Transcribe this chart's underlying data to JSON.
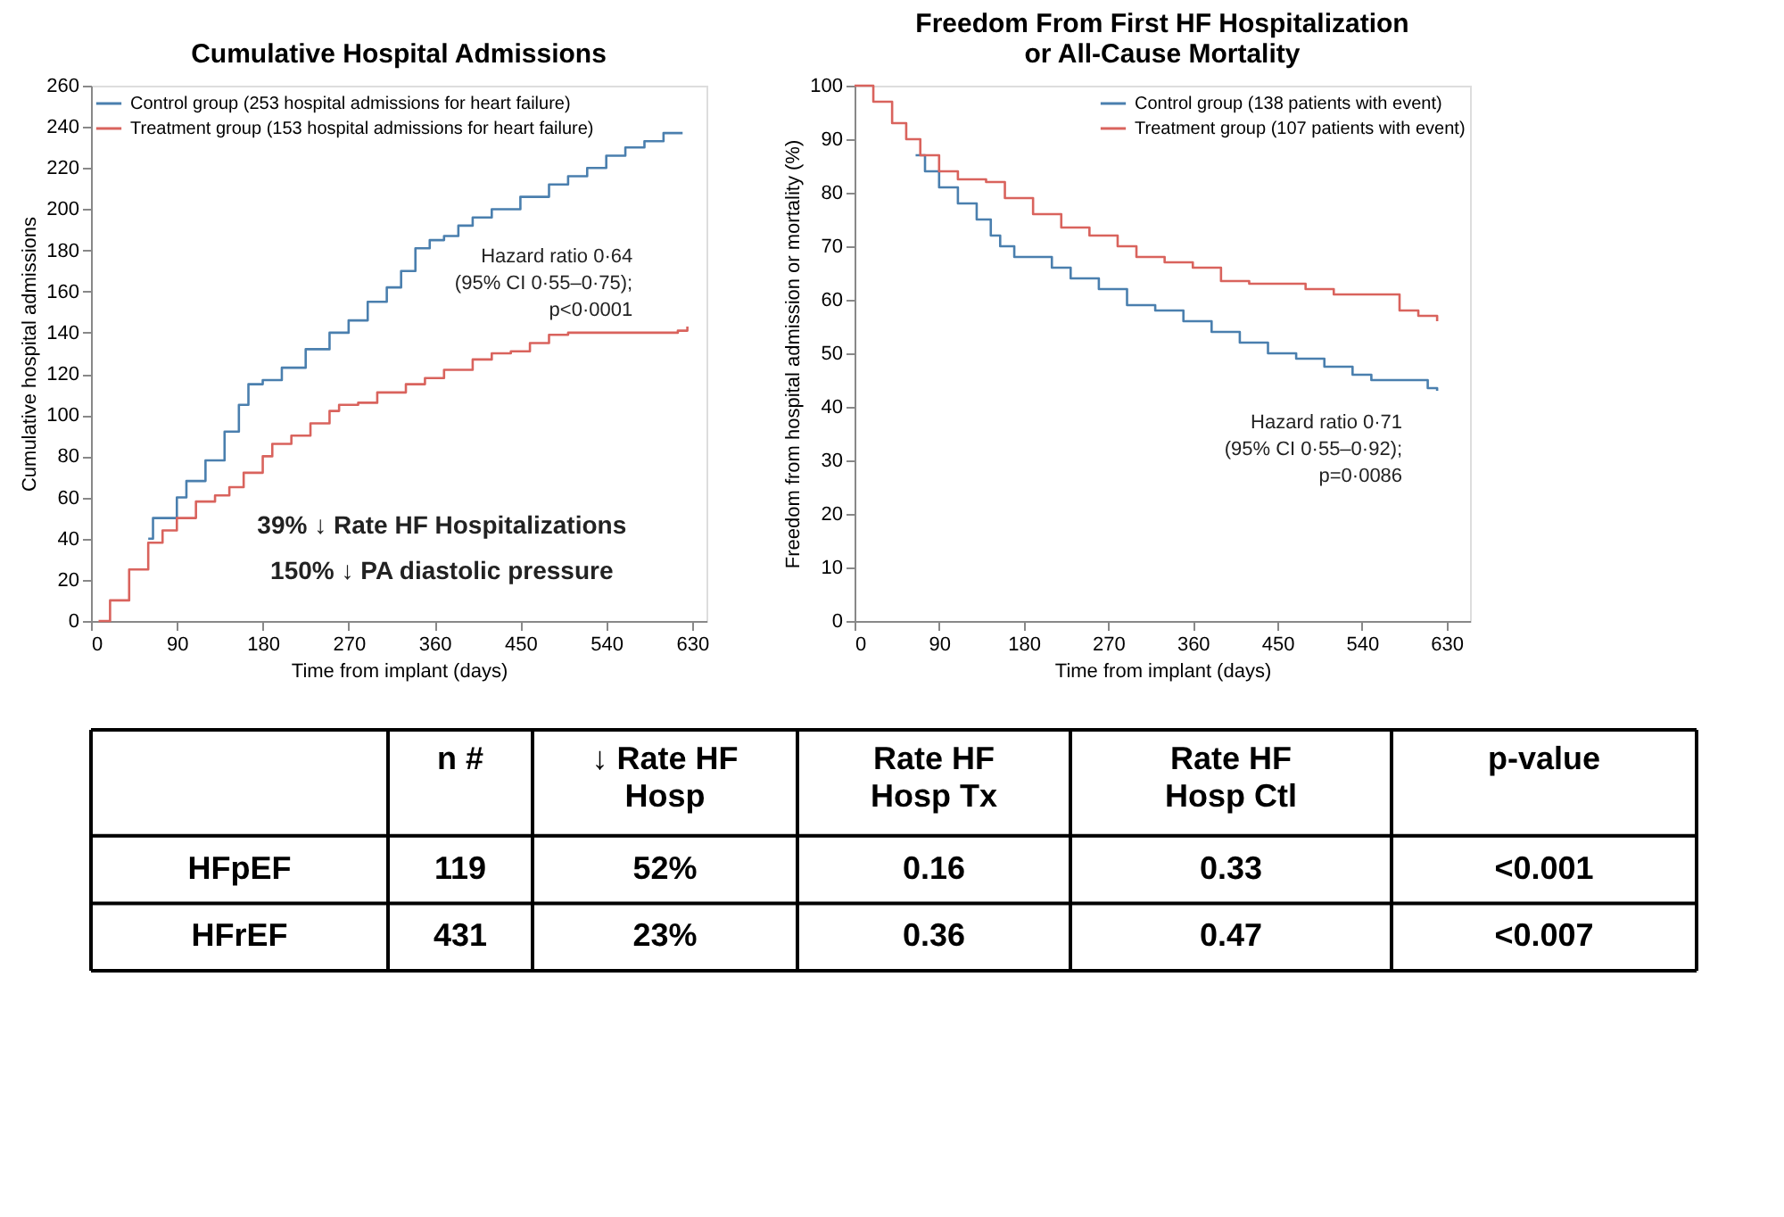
{
  "chart_data": [
    {
      "type": "step",
      "title": "Cumulative Hospital Admissions",
      "xlabel": "Time from implant (days)",
      "ylabel": "Cumulative hospital admissions",
      "xlim": [
        0,
        645
      ],
      "ylim": [
        0,
        260
      ],
      "xticks": [
        0,
        90,
        180,
        270,
        360,
        450,
        540,
        630
      ],
      "yticks": [
        0,
        20,
        40,
        60,
        80,
        100,
        120,
        140,
        160,
        180,
        200,
        220,
        240,
        260
      ],
      "legend": "top left",
      "series": [
        {
          "name": "Control group (253 hospital admissions for heart failure)",
          "color": "#4a7fae",
          "x": [
            60,
            65,
            75,
            90,
            100,
            120,
            140,
            155,
            165,
            180,
            200,
            225,
            250,
            270,
            290,
            310,
            325,
            340,
            355,
            370,
            385,
            400,
            420,
            450,
            480,
            500,
            520,
            540,
            560,
            580,
            600,
            620
          ],
          "values": [
            40,
            50,
            50,
            60,
            68,
            78,
            92,
            105,
            115,
            117,
            123,
            132,
            140,
            146,
            155,
            162,
            170,
            181,
            185,
            187,
            192,
            196,
            200,
            206,
            212,
            216,
            220,
            226,
            230,
            233,
            237,
            237
          ]
        },
        {
          "name": "Treatment group (153 hospital admissions for heart failure)",
          "color": "#d9635d",
          "x": [
            8,
            20,
            40,
            60,
            75,
            90,
            110,
            130,
            145,
            160,
            180,
            190,
            210,
            230,
            250,
            260,
            280,
            300,
            330,
            350,
            370,
            400,
            420,
            440,
            460,
            480,
            500,
            530,
            600,
            615,
            625
          ],
          "values": [
            0,
            10,
            25,
            38,
            44,
            50,
            58,
            61,
            65,
            72,
            80,
            86,
            90,
            96,
            102,
            105,
            106,
            111,
            115,
            118,
            122,
            127,
            130,
            131,
            135,
            139,
            140,
            140,
            140,
            141,
            143
          ]
        }
      ],
      "annotations": [
        "Hazard ratio 0·64\n(95% CI 0·55–0·75);\np<0·0001",
        "39% ↓ Rate HF Hospitalizations",
        "150% ↓ PA diastolic pressure"
      ]
    },
    {
      "type": "step",
      "title": "Freedom From First HF Hospitalization\nor All-Cause Mortality",
      "xlabel": "Time from implant (days)",
      "ylabel": "Freedom from hospital admission or mortality (%)",
      "xlim": [
        0,
        655
      ],
      "ylim": [
        0,
        100
      ],
      "xticks": [
        0,
        90,
        180,
        270,
        360,
        450,
        540,
        630
      ],
      "yticks": [
        0,
        10,
        20,
        30,
        40,
        50,
        60,
        70,
        80,
        90,
        100
      ],
      "legend": "top right",
      "series": [
        {
          "name": "Control group (138 patients with event)",
          "color": "#4a7fae",
          "x": [
            65,
            75,
            90,
            110,
            130,
            145,
            155,
            170,
            190,
            210,
            230,
            260,
            290,
            320,
            350,
            380,
            410,
            440,
            470,
            500,
            530,
            550,
            600,
            610,
            620
          ],
          "values": [
            87,
            84,
            81,
            78,
            75,
            72,
            70,
            68,
            68,
            66,
            64,
            62,
            59,
            58,
            56,
            54,
            52,
            50,
            49,
            47.5,
            46,
            45,
            45,
            43.5,
            43
          ]
        },
        {
          "name": "Treatment group (107 patients with event)",
          "color": "#d9635d",
          "x": [
            0,
            10,
            20,
            40,
            55,
            70,
            90,
            110,
            140,
            160,
            190,
            220,
            250,
            280,
            300,
            330,
            360,
            390,
            420,
            450,
            480,
            510,
            560,
            580,
            600,
            620
          ],
          "values": [
            100,
            100,
            97,
            93,
            90,
            87,
            84,
            82.5,
            82,
            79,
            76,
            73.5,
            72,
            70,
            68,
            67,
            66,
            63.5,
            63,
            63,
            62,
            61,
            61,
            58,
            57,
            56
          ]
        }
      ],
      "annotations": [
        "Hazard ratio 0·71\n(95% CI 0·55–0·92);\np=0·0086"
      ]
    },
    {
      "type": "other",
      "annotations": [
        "n #",
        "↓ Rate HF\nHosp",
        "Rate HF\nHosp Tx",
        "Rate HF\nHosp Ctl",
        "p-value",
        "HFpEF",
        "119",
        "52%",
        "0.16",
        "0.33",
        "<0.001",
        "HFrEF",
        "431",
        "23%",
        "0.36",
        "0.47",
        "<0.007"
      ]
    }
  ]
}
